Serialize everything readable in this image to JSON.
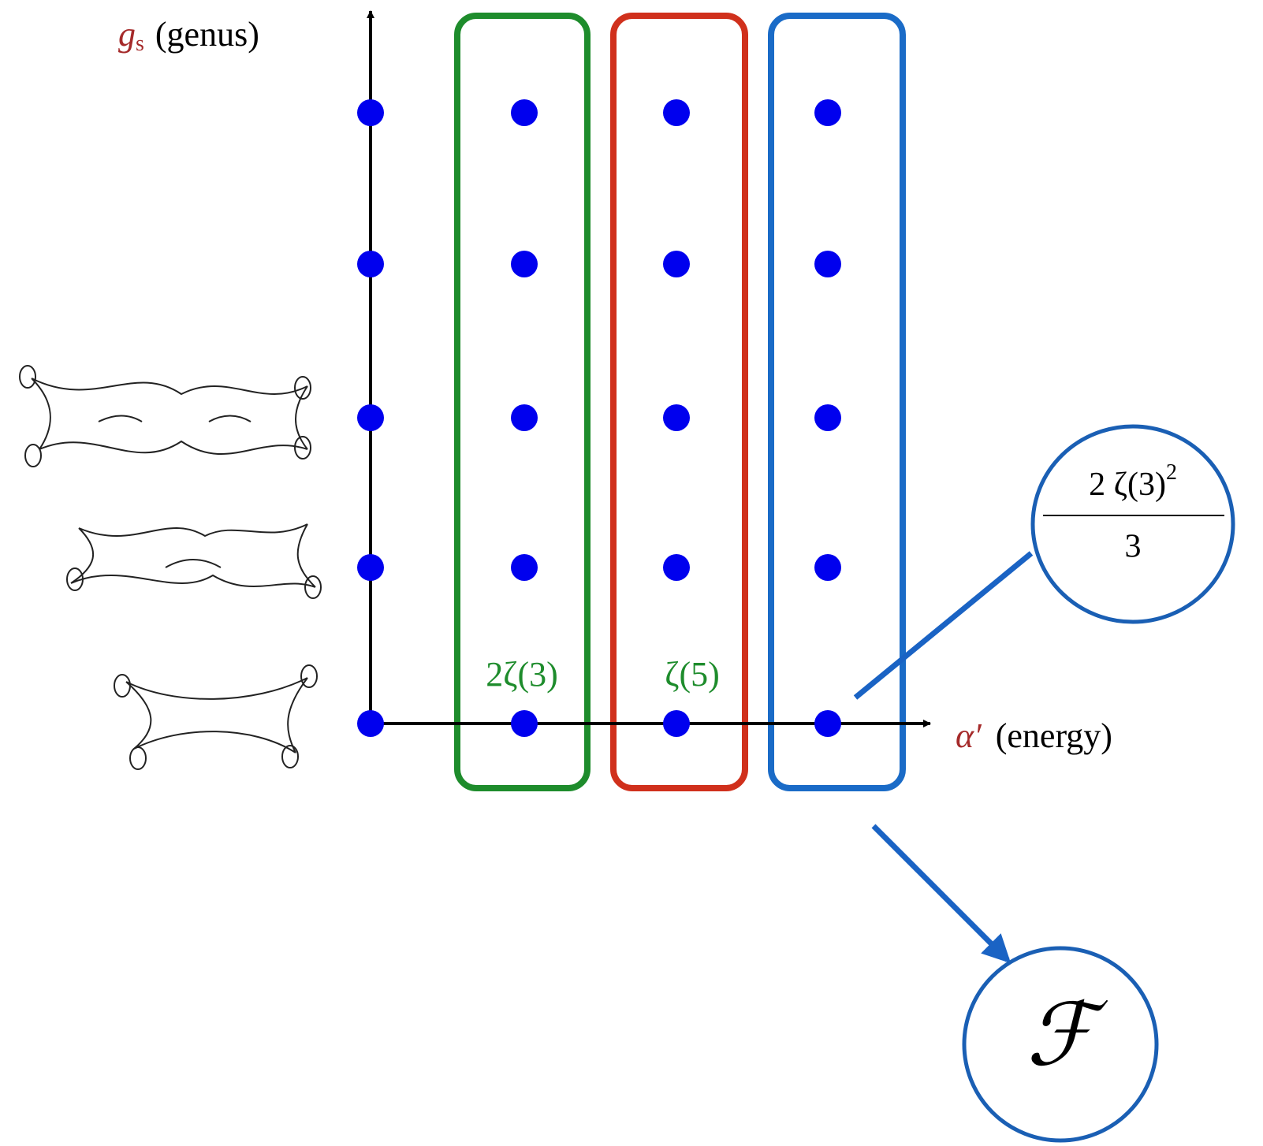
{
  "axes": {
    "y_label": {
      "symbol": "g",
      "subscript": "s",
      "text": "(genus)"
    },
    "x_label": {
      "symbol": "α′",
      "text": "(energy)"
    }
  },
  "columns": [
    {
      "label": "2ζ(3)"
    },
    {
      "label": "ζ(5)"
    }
  ],
  "callout": {
    "numerator": {
      "base": "2 ζ(3)",
      "exponent": "2"
    },
    "denominator": "3"
  },
  "result": {
    "label": "ℱ"
  }
}
